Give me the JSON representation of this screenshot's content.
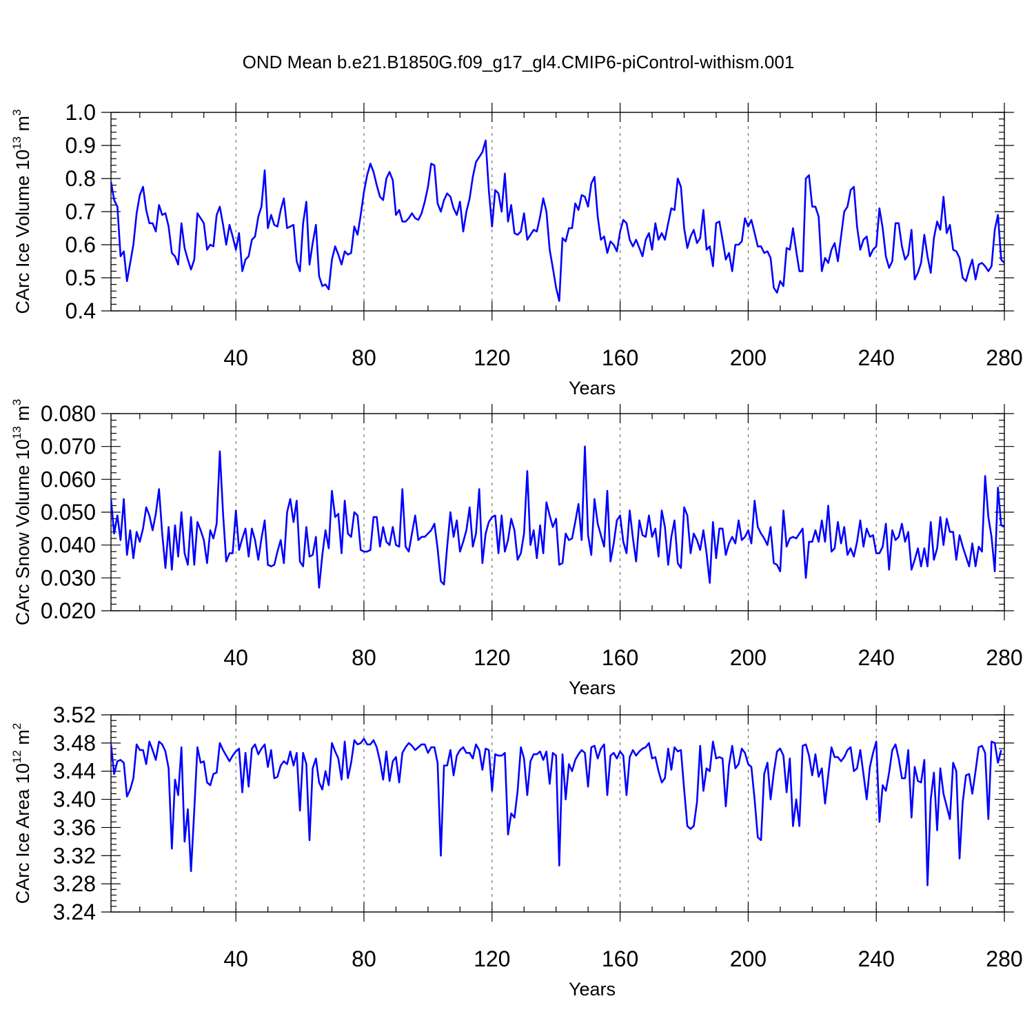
{
  "title": "OND Mean b.e21.B1850G.f09_g17_gl4.CMIP6-piControl-withism.001",
  "line_color": "#0000ff",
  "chart_data": [
    {
      "type": "line",
      "ylabel": {
        "text": "CArc Ice Volume 10",
        "exp": "13",
        "unit": " m",
        "unit_exp": "3"
      },
      "xlabel": "Years",
      "xlim": [
        1,
        280
      ],
      "ylim": [
        0.4,
        1.0
      ],
      "x_ticks": [
        40,
        80,
        120,
        160,
        200,
        240,
        280
      ],
      "y_ticks": [
        "0.4",
        "0.5",
        "0.6",
        "0.7",
        "0.8",
        "0.9",
        "1.0"
      ],
      "grid": "dashed vertical at major x ticks",
      "series": [
        {
          "values": [
            0.79,
            0.735,
            0.715,
            0.565,
            0.58,
            0.49,
            0.545,
            0.6,
            0.695,
            0.75,
            0.775,
            0.705,
            0.665,
            0.665,
            0.64,
            0.72,
            0.69,
            0.695,
            0.655,
            0.575,
            0.565,
            0.54,
            0.665,
            0.59,
            0.555,
            0.525,
            0.555,
            0.695,
            0.68,
            0.665,
            0.585,
            0.6,
            0.595,
            0.69,
            0.715,
            0.66,
            0.6,
            0.66,
            0.625,
            0.585,
            0.635,
            0.52,
            0.555,
            0.565,
            0.615,
            0.625,
            0.685,
            0.715,
            0.825,
            0.65,
            0.69,
            0.66,
            0.655,
            0.705,
            0.74,
            0.65,
            0.655,
            0.66,
            0.55,
            0.52,
            0.665,
            0.73,
            0.54,
            0.605,
            0.66,
            0.505,
            0.475,
            0.48,
            0.465,
            0.555,
            0.595,
            0.57,
            0.54,
            0.58,
            0.57,
            0.575,
            0.655,
            0.63,
            0.69,
            0.76,
            0.81,
            0.845,
            0.82,
            0.78,
            0.745,
            0.735,
            0.8,
            0.82,
            0.795,
            0.69,
            0.705,
            0.67,
            0.67,
            0.68,
            0.695,
            0.68,
            0.675,
            0.695,
            0.73,
            0.775,
            0.845,
            0.84,
            0.725,
            0.7,
            0.735,
            0.755,
            0.745,
            0.71,
            0.69,
            0.73,
            0.64,
            0.7,
            0.74,
            0.805,
            0.85,
            0.865,
            0.88,
            0.915,
            0.765,
            0.655,
            0.765,
            0.755,
            0.7,
            0.815,
            0.67,
            0.72,
            0.635,
            0.63,
            0.64,
            0.695,
            0.615,
            0.63,
            0.645,
            0.64,
            0.685,
            0.74,
            0.7,
            0.585,
            0.53,
            0.47,
            0.43,
            0.62,
            0.61,
            0.65,
            0.65,
            0.725,
            0.705,
            0.75,
            0.745,
            0.715,
            0.785,
            0.805,
            0.685,
            0.615,
            0.625,
            0.575,
            0.61,
            0.6,
            0.58,
            0.64,
            0.675,
            0.665,
            0.615,
            0.595,
            0.615,
            0.59,
            0.565,
            0.615,
            0.635,
            0.585,
            0.665,
            0.615,
            0.635,
            0.615,
            0.665,
            0.71,
            0.705,
            0.8,
            0.775,
            0.65,
            0.59,
            0.625,
            0.645,
            0.605,
            0.62,
            0.705,
            0.585,
            0.595,
            0.535,
            0.665,
            0.67,
            0.615,
            0.555,
            0.575,
            0.52,
            0.6,
            0.6,
            0.61,
            0.68,
            0.655,
            0.675,
            0.635,
            0.595,
            0.595,
            0.575,
            0.58,
            0.56,
            0.47,
            0.455,
            0.49,
            0.475,
            0.59,
            0.585,
            0.65,
            0.58,
            0.52,
            0.52,
            0.8,
            0.81,
            0.715,
            0.715,
            0.685,
            0.52,
            0.56,
            0.545,
            0.585,
            0.605,
            0.55,
            0.625,
            0.7,
            0.715,
            0.765,
            0.775,
            0.655,
            0.585,
            0.615,
            0.625,
            0.565,
            0.585,
            0.595,
            0.71,
            0.65,
            0.565,
            0.53,
            0.55,
            0.665,
            0.665,
            0.595,
            0.555,
            0.57,
            0.645,
            0.495,
            0.515,
            0.545,
            0.63,
            0.565,
            0.515,
            0.62,
            0.67,
            0.645,
            0.745,
            0.635,
            0.66,
            0.585,
            0.58,
            0.56,
            0.5,
            0.49,
            0.525,
            0.555,
            0.495,
            0.54,
            0.545,
            0.535,
            0.52,
            0.535,
            0.645,
            0.69,
            0.555,
            0.545
          ]
        }
      ]
    },
    {
      "type": "line",
      "ylabel": {
        "text": "CArc Snow Volume 10",
        "exp": "13",
        "unit": " m",
        "unit_exp": "3"
      },
      "xlabel": "Years",
      "xlim": [
        1,
        280
      ],
      "ylim": [
        0.02,
        0.08
      ],
      "x_ticks": [
        40,
        80,
        120,
        160,
        200,
        240,
        280
      ],
      "y_ticks": [
        "0.020",
        "0.030",
        "0.040",
        "0.050",
        "0.060",
        "0.070",
        "0.080"
      ],
      "grid": "dashed vertical at major x ticks",
      "series": [
        {
          "values": [
            0.054,
            0.0435,
            0.049,
            0.0415,
            0.054,
            0.037,
            0.0445,
            0.036,
            0.044,
            0.041,
            0.045,
            0.0515,
            0.049,
            0.0445,
            0.0495,
            0.057,
            0.0435,
            0.033,
            0.0455,
            0.0325,
            0.046,
            0.0365,
            0.05,
            0.0375,
            0.034,
            0.0485,
            0.034,
            0.047,
            0.0445,
            0.0415,
            0.0345,
            0.0445,
            0.042,
            0.0465,
            0.0685,
            0.0495,
            0.035,
            0.0375,
            0.0375,
            0.0505,
            0.0385,
            0.042,
            0.045,
            0.0365,
            0.045,
            0.0415,
            0.0355,
            0.042,
            0.0475,
            0.034,
            0.0335,
            0.034,
            0.038,
            0.0415,
            0.0345,
            0.05,
            0.054,
            0.047,
            0.0535,
            0.035,
            0.0335,
            0.0455,
            0.0365,
            0.037,
            0.0425,
            0.027,
            0.037,
            0.0445,
            0.039,
            0.0565,
            0.0485,
            0.0495,
            0.0375,
            0.0535,
            0.0435,
            0.0425,
            0.05,
            0.049,
            0.0385,
            0.038,
            0.038,
            0.0385,
            0.0485,
            0.0485,
            0.0395,
            0.0455,
            0.041,
            0.04,
            0.0455,
            0.04,
            0.0395,
            0.057,
            0.0395,
            0.038,
            0.0435,
            0.049,
            0.0415,
            0.0425,
            0.0425,
            0.0435,
            0.0445,
            0.0465,
            0.039,
            0.029,
            0.028,
            0.0395,
            0.05,
            0.0425,
            0.0475,
            0.038,
            0.041,
            0.0445,
            0.0515,
            0.0395,
            0.0435,
            0.057,
            0.0345,
            0.0435,
            0.047,
            0.0485,
            0.049,
            0.0375,
            0.049,
            0.038,
            0.0415,
            0.048,
            0.0445,
            0.0355,
            0.0375,
            0.0435,
            0.0625,
            0.04,
            0.0445,
            0.036,
            0.046,
            0.0375,
            0.053,
            0.049,
            0.0455,
            0.048,
            0.034,
            0.0345,
            0.0435,
            0.0415,
            0.042,
            0.047,
            0.0525,
            0.0415,
            0.07,
            0.043,
            0.037,
            0.054,
            0.0465,
            0.043,
            0.0395,
            0.0565,
            0.035,
            0.0405,
            0.0475,
            0.049,
            0.041,
            0.0375,
            0.0505,
            0.042,
            0.035,
            0.0475,
            0.043,
            0.0425,
            0.049,
            0.0425,
            0.045,
            0.0365,
            0.0505,
            0.0455,
            0.034,
            0.0425,
            0.0475,
            0.0345,
            0.033,
            0.0515,
            0.049,
            0.0375,
            0.0435,
            0.0415,
            0.0385,
            0.0445,
            0.0375,
            0.0285,
            0.047,
            0.036,
            0.045,
            0.045,
            0.037,
            0.0405,
            0.0425,
            0.0405,
            0.0475,
            0.0415,
            0.0425,
            0.0445,
            0.0405,
            0.0535,
            0.0455,
            0.0435,
            0.042,
            0.04,
            0.0455,
            0.0345,
            0.034,
            0.032,
            0.0505,
            0.0395,
            0.042,
            0.0425,
            0.042,
            0.0435,
            0.045,
            0.03,
            0.041,
            0.041,
            0.0445,
            0.041,
            0.0475,
            0.041,
            0.052,
            0.038,
            0.039,
            0.047,
            0.0405,
            0.0455,
            0.037,
            0.039,
            0.0365,
            0.041,
            0.0475,
            0.0395,
            0.045,
            0.0425,
            0.043,
            0.0375,
            0.0375,
            0.0395,
            0.0465,
            0.0325,
            0.0445,
            0.0415,
            0.0425,
            0.0465,
            0.041,
            0.044,
            0.0325,
            0.0355,
            0.039,
            0.0335,
            0.039,
            0.0335,
            0.047,
            0.0355,
            0.039,
            0.0485,
            0.04,
            0.048,
            0.044,
            0.044,
            0.0355,
            0.043,
            0.0395,
            0.0365,
            0.0335,
            0.0405,
            0.0335,
            0.0395,
            0.038,
            0.061,
            0.0485,
            0.0425,
            0.032,
            0.0575,
            0.046,
            0.0455,
            0.045
          ]
        }
      ]
    },
    {
      "type": "line",
      "ylabel": {
        "text": "CArc Ice Area 10",
        "exp": "12",
        "unit": " m",
        "unit_exp": "2"
      },
      "xlabel": "Years",
      "xlim": [
        1,
        280
      ],
      "ylim": [
        3.24,
        3.52
      ],
      "x_ticks": [
        40,
        80,
        120,
        160,
        200,
        240,
        280
      ],
      "y_ticks": [
        "3.24",
        "3.28",
        "3.32",
        "3.36",
        "3.40",
        "3.44",
        "3.48",
        "3.52"
      ],
      "grid": "dashed vertical at major x ticks",
      "series": [
        {
          "values": [
            3.478,
            3.436,
            3.454,
            3.456,
            3.452,
            3.404,
            3.414,
            3.43,
            3.478,
            3.47,
            3.47,
            3.45,
            3.482,
            3.47,
            3.456,
            3.482,
            3.478,
            3.468,
            3.444,
            3.33,
            3.428,
            3.406,
            3.474,
            3.34,
            3.386,
            3.298,
            3.384,
            3.474,
            3.452,
            3.454,
            3.424,
            3.42,
            3.436,
            3.438,
            3.48,
            3.47,
            3.462,
            3.454,
            3.462,
            3.468,
            3.472,
            3.41,
            3.466,
            3.418,
            3.472,
            3.478,
            3.464,
            3.472,
            3.478,
            3.446,
            3.47,
            3.43,
            3.432,
            3.448,
            3.454,
            3.45,
            3.468,
            3.448,
            3.466,
            3.384,
            3.466,
            3.45,
            3.342,
            3.444,
            3.458,
            3.424,
            3.414,
            3.44,
            3.42,
            3.48,
            3.468,
            3.458,
            3.428,
            3.482,
            3.43,
            3.452,
            3.484,
            3.478,
            3.48,
            3.486,
            3.478,
            3.478,
            3.484,
            3.474,
            3.454,
            3.428,
            3.468,
            3.426,
            3.454,
            3.46,
            3.424,
            3.466,
            3.474,
            3.48,
            3.476,
            3.47,
            3.474,
            3.478,
            3.478,
            3.466,
            3.474,
            3.474,
            3.452,
            3.32,
            3.448,
            3.448,
            3.47,
            3.434,
            3.462,
            3.47,
            3.474,
            3.466,
            3.466,
            3.458,
            3.478,
            3.47,
            3.442,
            3.472,
            3.47,
            3.412,
            3.464,
            3.462,
            3.462,
            3.466,
            3.35,
            3.38,
            3.374,
            3.412,
            3.474,
            3.458,
            3.406,
            3.454,
            3.464,
            3.464,
            3.468,
            3.456,
            3.468,
            3.422,
            3.466,
            3.462,
            3.306,
            3.464,
            3.4,
            3.45,
            3.44,
            3.456,
            3.464,
            3.47,
            3.466,
            3.418,
            3.474,
            3.476,
            3.458,
            3.472,
            3.478,
            3.406,
            3.462,
            3.466,
            3.458,
            3.468,
            3.462,
            3.406,
            3.46,
            3.47,
            3.462,
            3.468,
            3.472,
            3.474,
            3.48,
            3.458,
            3.46,
            3.44,
            3.424,
            3.43,
            3.472,
            3.442,
            3.474,
            3.468,
            3.47,
            3.414,
            3.362,
            3.358,
            3.362,
            3.396,
            3.476,
            3.412,
            3.444,
            3.44,
            3.482,
            3.458,
            3.46,
            3.458,
            3.39,
            3.448,
            3.476,
            3.444,
            3.45,
            3.472,
            3.466,
            3.45,
            3.446,
            3.4,
            3.346,
            3.342,
            3.436,
            3.452,
            3.4,
            3.438,
            3.468,
            3.472,
            3.462,
            3.41,
            3.458,
            3.362,
            3.4,
            3.362,
            3.476,
            3.478,
            3.462,
            3.434,
            3.464,
            3.432,
            3.444,
            3.394,
            3.434,
            3.474,
            3.46,
            3.46,
            3.454,
            3.46,
            3.47,
            3.474,
            3.44,
            3.444,
            3.47,
            3.436,
            3.4,
            3.446,
            3.466,
            3.482,
            3.368,
            3.42,
            3.412,
            3.438,
            3.47,
            3.478,
            3.458,
            3.43,
            3.43,
            3.47,
            3.374,
            3.446,
            3.426,
            3.424,
            3.456,
            3.278,
            3.4,
            3.438,
            3.356,
            3.444,
            3.408,
            3.39,
            3.372,
            3.452,
            3.44,
            3.316,
            3.396,
            3.434,
            3.436,
            3.408,
            3.44,
            3.474,
            3.476,
            3.466,
            3.372,
            3.482,
            3.48,
            3.452,
            3.47
          ]
        }
      ]
    }
  ]
}
